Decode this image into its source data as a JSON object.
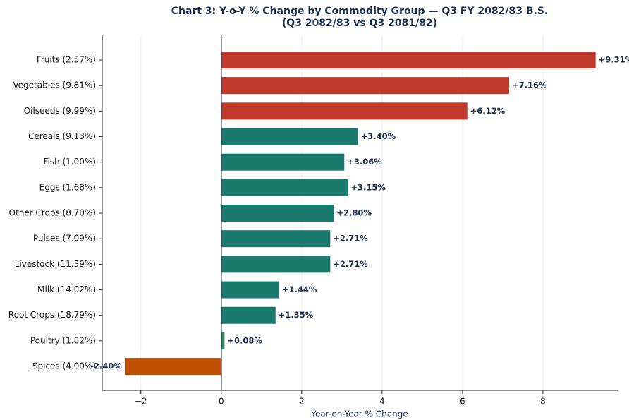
{
  "chart_data": {
    "type": "barh",
    "title": "Chart 3: Y-o-Y % Change by Commodity Group — Q3 FY 2082/83 B.S.",
    "subtitle": "(Q3 2082/83 vs Q3 2081/82)",
    "xlabel": "Year-on-Year % Change",
    "categories": [
      "Fruits (2.57%)",
      "Vegetables (9.81%)",
      "Oilseeds (9.99%)",
      "Cereals (9.13%)",
      "Fish (1.00%)",
      "Eggs (1.68%)",
      "Other Crops (8.70%)",
      "Pulses (7.09%)",
      "Livestock (11.39%)",
      "Milk (14.02%)",
      "Root Crops (18.79%)",
      "Poultry (1.82%)",
      "Spices (4.00%)"
    ],
    "values": [
      9.31,
      7.16,
      6.12,
      3.4,
      3.06,
      3.15,
      2.8,
      2.71,
      2.71,
      1.44,
      1.35,
      0.08,
      -2.4
    ],
    "value_labels": [
      "+9.31%",
      "+7.16%",
      "+6.12%",
      "+3.40%",
      "+3.06%",
      "+3.15%",
      "+2.80%",
      "+2.71%",
      "+2.71%",
      "+1.44%",
      "+1.35%",
      "+0.08%",
      "-2.40%"
    ],
    "colors": [
      "#c0392b",
      "#c0392b",
      "#c0392b",
      "#1a7a6e",
      "#1a7a6e",
      "#1a7a6e",
      "#1a7a6e",
      "#1a7a6e",
      "#1a7a6e",
      "#1a7a6e",
      "#1a7a6e",
      "#2e8b57",
      "#c05000"
    ],
    "xlim": [
      -2.96,
      9.86
    ],
    "xticks": [
      {
        "value": -2,
        "label": "−2"
      },
      0,
      2,
      4,
      6,
      8
    ],
    "grid": true
  }
}
